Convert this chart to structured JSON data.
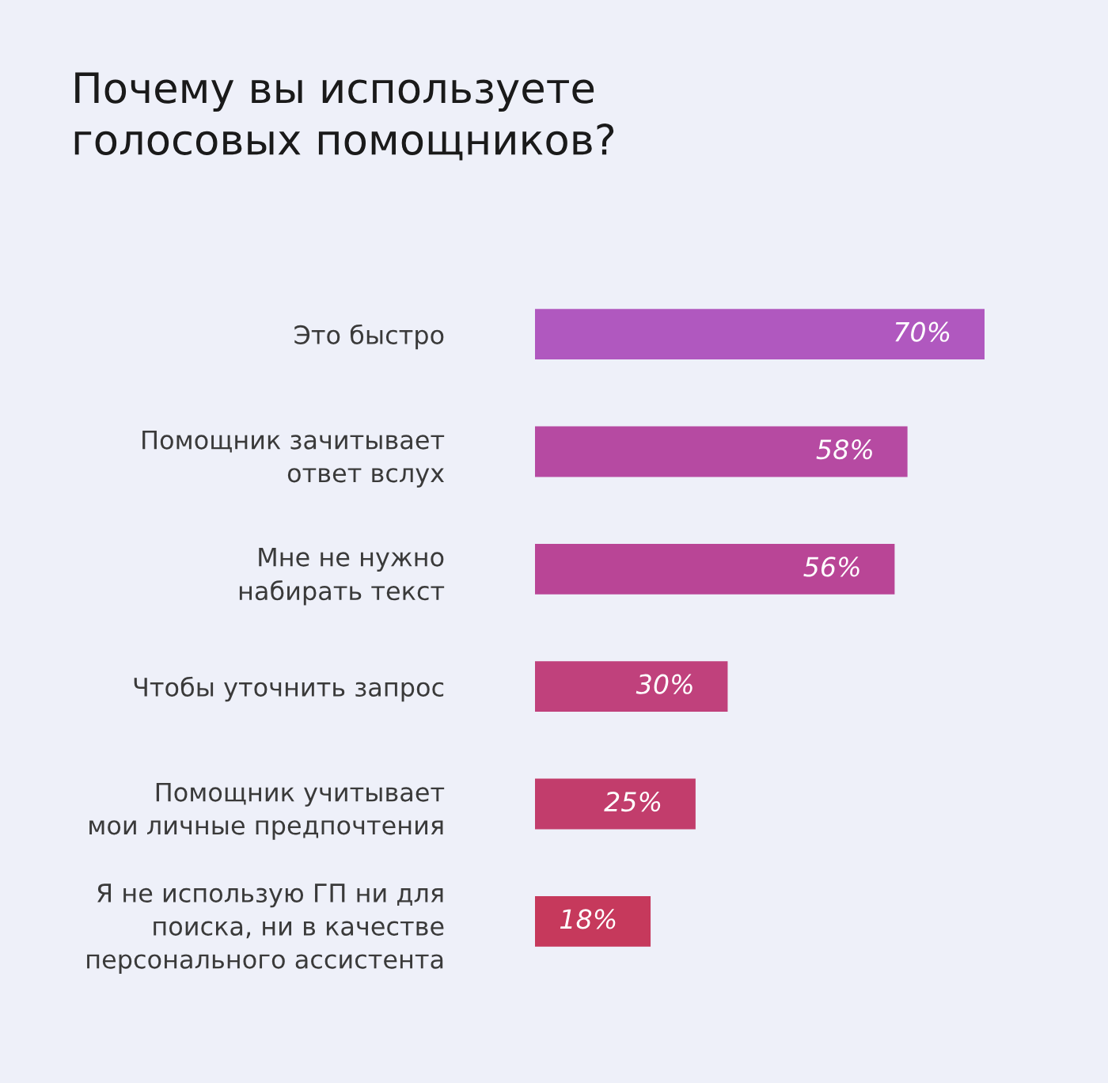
{
  "chart_data": {
    "type": "bar",
    "orientation": "horizontal",
    "title": "Почему вы используете\nголосовых помощников?",
    "categories": [
      "Это быстро",
      "Помощник зачитывает\nответ вслух",
      "Мне не нужно\nнабирать текст",
      "Чтобы уточнить запрос",
      "Помощник учитывает\nмои личные предпочтения",
      "Я не использую ГП ни для\nпоиска, ни в качестве\nперсонального ассистента"
    ],
    "values": [
      70,
      58,
      56,
      30,
      25,
      18
    ],
    "colors": [
      "#b058bf",
      "#b64aa2",
      "#b94596",
      "#c0417c",
      "#c23d6c",
      "#c6395c"
    ],
    "value_labels": [
      "70%",
      "58%",
      "56%",
      "30%",
      "25%",
      "18%"
    ],
    "grid": false,
    "legend": false
  }
}
